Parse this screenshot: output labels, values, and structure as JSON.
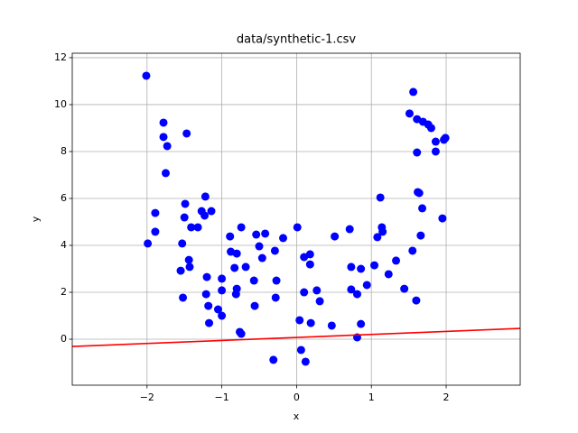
{
  "chart_data": {
    "type": "scatter",
    "title": "data/synthetic-1.csv",
    "xlabel": "x",
    "ylabel": "y",
    "xlim": [
      -3.0,
      2.99
    ],
    "ylim": [
      -1.96,
      12.19
    ],
    "xticks": [
      {
        "value": -2,
        "label": "−2"
      },
      {
        "value": -1,
        "label": "−1"
      },
      0,
      1,
      2
    ],
    "yticks": [
      0,
      2,
      4,
      6,
      8,
      10,
      12
    ],
    "grid": true,
    "points": {
      "color": "#0000ff",
      "x": [
        -2.01,
        -1.99,
        -1.89,
        -1.89,
        -1.78,
        -1.78,
        -1.73,
        -1.75,
        -1.47,
        -1.49,
        -1.5,
        -1.53,
        -1.55,
        -1.52,
        -1.44,
        -1.43,
        -1.41,
        -1.32,
        -1.27,
        -1.23,
        -1.22,
        -1.14,
        -1.2,
        -1.21,
        -1.18,
        -1.17,
        -1.05,
        -1.0,
        -1.0,
        -1.0,
        -0.89,
        -0.88,
        -0.8,
        -0.83,
        -0.8,
        -0.81,
        -0.74,
        -0.76,
        -0.74,
        -0.68,
        -0.54,
        -0.42,
        -0.5,
        -0.46,
        -0.57,
        -0.56,
        -0.29,
        -0.18,
        -0.27,
        -0.28,
        -0.31,
        0.01,
        0.04,
        0.06,
        0.12,
        0.1,
        0.1,
        0.18,
        0.18,
        0.19,
        0.27,
        0.31,
        0.47,
        0.51,
        0.71,
        0.73,
        0.73,
        0.81,
        0.81,
        0.86,
        0.86,
        0.94,
        1.04,
        1.08,
        1.12,
        1.14,
        1.15,
        1.23,
        1.33,
        1.44,
        1.51,
        1.56,
        1.55,
        1.6,
        1.61,
        1.61,
        1.62,
        1.64,
        1.68,
        1.66,
        1.69,
        1.76,
        1.8,
        1.86,
        1.86,
        1.95,
        1.97,
        1.99
      ],
      "y": [
        11.23,
        4.08,
        4.58,
        5.38,
        9.23,
        8.62,
        8.23,
        7.08,
        8.77,
        5.77,
        5.19,
        4.08,
        2.92,
        1.77,
        3.38,
        3.08,
        4.77,
        4.77,
        5.46,
        5.27,
        6.08,
        5.46,
        2.65,
        1.92,
        1.42,
        0.69,
        1.27,
        1.0,
        2.08,
        2.58,
        4.38,
        3.73,
        3.65,
        3.04,
        2.15,
        1.92,
        4.77,
        0.31,
        0.23,
        3.08,
        4.46,
        4.5,
        3.96,
        3.46,
        2.5,
        1.42,
        3.77,
        4.31,
        2.5,
        1.77,
        -0.88,
        4.77,
        0.81,
        -0.46,
        -0.96,
        3.5,
        2.0,
        3.62,
        3.19,
        0.69,
        2.08,
        1.62,
        0.58,
        4.38,
        4.69,
        3.08,
        2.12,
        1.92,
        0.08,
        3.0,
        0.65,
        2.31,
        3.15,
        4.35,
        6.04,
        4.77,
        4.58,
        2.77,
        3.35,
        2.15,
        9.62,
        10.54,
        3.77,
        1.65,
        9.38,
        7.96,
        6.27,
        6.23,
        5.58,
        4.42,
        9.27,
        9.15,
        9.0,
        8.42,
        8.0,
        5.15,
        8.5,
        8.58
      ]
    },
    "line": {
      "color": "#ff0000",
      "x": [
        -3.0,
        2.99
      ],
      "y": [
        -0.31,
        0.46
      ]
    }
  }
}
